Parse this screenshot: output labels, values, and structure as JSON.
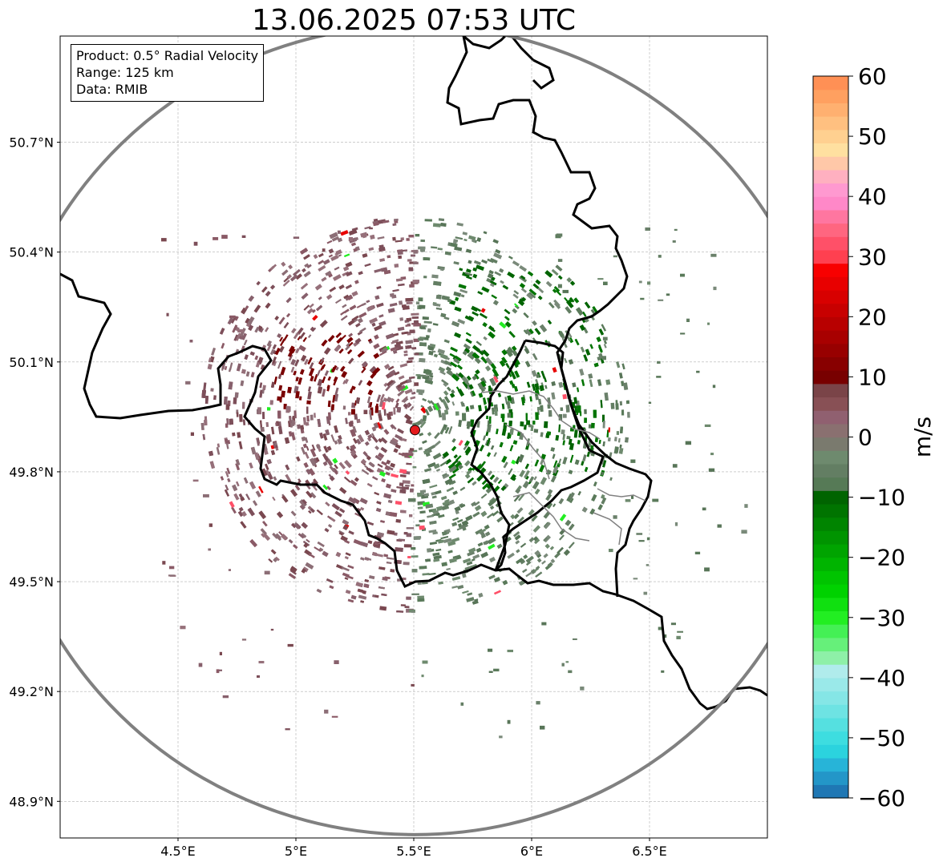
{
  "title": "13.06.2025 07:53 UTC",
  "info": {
    "product": "Product: 0.5° Radial Velocity",
    "range": "Range: 125 km",
    "data": "Data: RMIB"
  },
  "map": {
    "lon_range": [
      4.0,
      7.0
    ],
    "lat_range": [
      48.8,
      50.99
    ],
    "lon_ticks": [
      {
        "value": 4.5,
        "label": "4.5°E"
      },
      {
        "value": 5.0,
        "label": "5°E"
      },
      {
        "value": 5.5,
        "label": "5.5°E"
      },
      {
        "value": 6.0,
        "label": "6°E"
      },
      {
        "value": 6.5,
        "label": "6.5°E"
      }
    ],
    "lat_ticks": [
      {
        "value": 48.9,
        "label": "48.9°N"
      },
      {
        "value": 49.2,
        "label": "49.2°N"
      },
      {
        "value": 49.5,
        "label": "49.5°N"
      },
      {
        "value": 49.8,
        "label": "49.8°N"
      },
      {
        "value": 50.1,
        "label": "50.1°N"
      },
      {
        "value": 50.4,
        "label": "50.4°N"
      },
      {
        "value": 50.7,
        "label": "50.7°N"
      }
    ],
    "radar_site": {
      "lon": 5.505,
      "lat": 49.914
    },
    "grid": true
  },
  "colorbar": {
    "label": "m/s",
    "min": -60,
    "max": 60,
    "ticks": [
      {
        "value": 60,
        "label": "60"
      },
      {
        "value": 50,
        "label": "50"
      },
      {
        "value": 40,
        "label": "40"
      },
      {
        "value": 30,
        "label": "30"
      },
      {
        "value": 20,
        "label": "20"
      },
      {
        "value": 10,
        "label": "10"
      },
      {
        "value": 0,
        "label": "0"
      },
      {
        "value": -10,
        "label": "−10"
      },
      {
        "value": -20,
        "label": "−20"
      },
      {
        "value": -30,
        "label": "−30"
      },
      {
        "value": -40,
        "label": "−40"
      },
      {
        "value": -50,
        "label": "−50"
      },
      {
        "value": -60,
        "label": "−60"
      }
    ],
    "colors": [
      "#1f77b4",
      "#2396c8",
      "#27b4d8",
      "#2bd3de",
      "#3ddde0",
      "#55e0e0",
      "#6ee3e3",
      "#85e6e6",
      "#9ae9e9",
      "#b0ecec",
      "#8ef0a8",
      "#66f07a",
      "#44f055",
      "#22ee22",
      "#10e010",
      "#00d200",
      "#00c400",
      "#00b400",
      "#00a400",
      "#009400",
      "#008400",
      "#007400",
      "#006400",
      "#567a56",
      "#637e63",
      "#6e8a6e",
      "#7a7a6e",
      "#8a7070",
      "#906070",
      "#885055",
      "#7a4448",
      "#780000",
      "#880000",
      "#980000",
      "#a80000",
      "#b80000",
      "#c80000",
      "#d80000",
      "#e80000",
      "#f80000",
      "#ff4050",
      "#ff5068",
      "#ff6680",
      "#ff76a0",
      "#ff88c8",
      "#ff99d0",
      "#ffb0c0",
      "#ffc8a8",
      "#ffe0a0",
      "#ffd090",
      "#ffc080",
      "#ffb070",
      "#ffa060",
      "#ff9055"
    ]
  },
  "colors": {
    "range_ring": "#808080",
    "border": "#000000",
    "inner_border": "#808080",
    "approaching": "#5a7a5a",
    "receding": "#7d4f5a",
    "strong_approaching": "#006400",
    "strong_receding": "#7a0000",
    "radar_marker": "#e41a1c"
  }
}
